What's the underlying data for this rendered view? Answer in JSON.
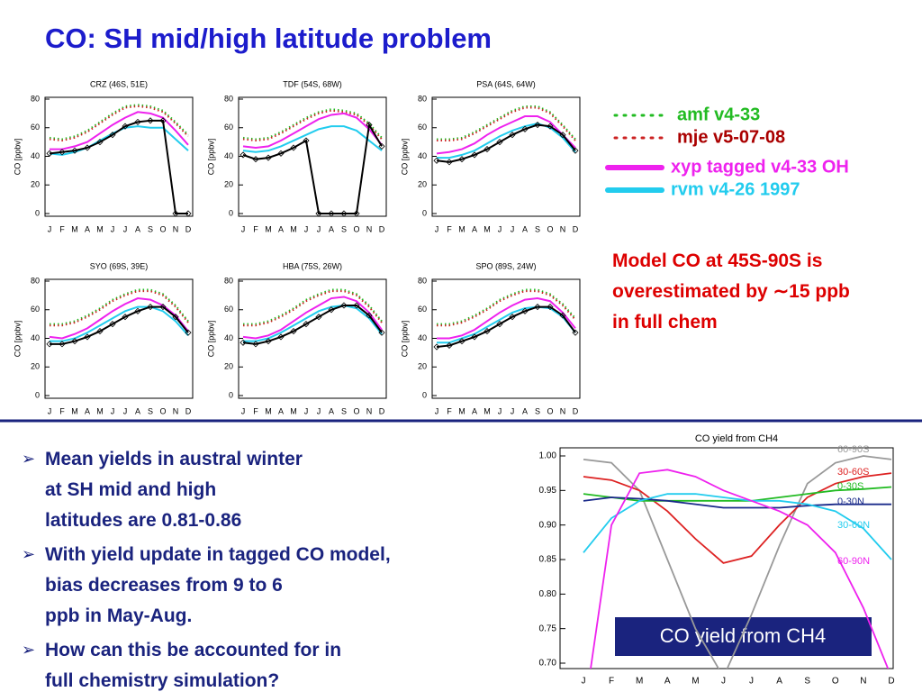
{
  "title": "CO: SH mid/high latitude problem",
  "legend": [
    {
      "name": "amf v4-33",
      "color": "#22bb22",
      "style": "dotted"
    },
    {
      "name": "mje v5-07-08",
      "color": "#cc2222",
      "style": "dotted"
    },
    {
      "name": "xyp tagged v4-33 OH",
      "color": "#ee22ee",
      "style": "solid"
    },
    {
      "name": "rvm v4-26 1997",
      "color": "#22ccee",
      "style": "solid"
    }
  ],
  "note": "Model CO at 45S-90S is overestimated by ∼15 ppb in full chem",
  "bullets": [
    "Mean yields in austral winter at SH mid and high latitudes are 0.81-0.86",
    "With yield update in tagged CO model, bias decreases from 9 to 6 ppb in May-Aug.",
    "How can this be accounted for in full chemistry simulation?"
  ],
  "caption": "CO yield from CH4",
  "chart_data": [
    {
      "type": "line",
      "title": "CRZ (46S, 51E)",
      "y_label": "CO [ppbv]",
      "categories": [
        "J",
        "F",
        "M",
        "A",
        "M",
        "J",
        "J",
        "A",
        "S",
        "O",
        "N",
        "D"
      ],
      "ylim": [
        0,
        80
      ],
      "yticks": [
        0,
        20,
        40,
        60,
        80
      ],
      "series": [
        {
          "values": [
            53,
            52,
            54,
            58,
            64,
            70,
            75,
            76,
            75,
            72,
            64,
            55
          ]
        },
        {
          "values": [
            52,
            51,
            53,
            57,
            63,
            69,
            74,
            75,
            74,
            71,
            63,
            54
          ]
        },
        {
          "values": [
            45,
            45,
            47,
            50,
            56,
            62,
            67,
            71,
            70,
            67,
            58,
            48
          ]
        },
        {
          "values": [
            42,
            41,
            43,
            46,
            51,
            56,
            60,
            61,
            60,
            60,
            52,
            44
          ]
        },
        {
          "color": "#000000",
          "values": [
            42,
            43,
            44,
            46,
            50,
            55,
            61,
            64,
            65,
            65,
            0,
            0
          ]
        }
      ]
    },
    {
      "type": "line",
      "title": "TDF (54S, 68W)",
      "y_label": "CO [ppbv]",
      "categories": [
        "J",
        "F",
        "M",
        "A",
        "M",
        "J",
        "J",
        "A",
        "S",
        "O",
        "N",
        "D"
      ],
      "ylim": [
        0,
        80
      ],
      "yticks": [
        0,
        20,
        40,
        60,
        80
      ],
      "series": [
        {
          "values": [
            53,
            52,
            53,
            57,
            62,
            67,
            71,
            73,
            72,
            70,
            63,
            53
          ]
        },
        {
          "values": [
            52,
            51,
            52,
            56,
            61,
            66,
            70,
            72,
            71,
            69,
            62,
            52
          ]
        },
        {
          "values": [
            47,
            46,
            47,
            51,
            56,
            61,
            66,
            69,
            70,
            67,
            59,
            48
          ]
        },
        {
          "values": [
            44,
            43,
            44,
            47,
            51,
            55,
            59,
            61,
            61,
            58,
            51,
            44
          ]
        },
        {
          "color": "#000000",
          "values": [
            41,
            38,
            39,
            42,
            46,
            51,
            0,
            0,
            0,
            0,
            62,
            47
          ]
        }
      ]
    },
    {
      "type": "line",
      "title": "PSA (64S, 64W)",
      "y_label": "CO [ppbv]",
      "categories": [
        "J",
        "F",
        "M",
        "A",
        "M",
        "J",
        "J",
        "A",
        "S",
        "O",
        "N",
        "D"
      ],
      "ylim": [
        0,
        80
      ],
      "yticks": [
        0,
        20,
        40,
        60,
        80
      ],
      "series": [
        {
          "values": [
            52,
            52,
            53,
            57,
            62,
            67,
            72,
            75,
            75,
            71,
            62,
            52
          ]
        },
        {
          "values": [
            51,
            51,
            52,
            56,
            61,
            66,
            71,
            74,
            74,
            70,
            61,
            51
          ]
        },
        {
          "values": [
            42,
            43,
            45,
            49,
            55,
            60,
            64,
            68,
            68,
            64,
            55,
            46
          ]
        },
        {
          "values": [
            39,
            39,
            41,
            44,
            49,
            54,
            58,
            61,
            63,
            60,
            53,
            43
          ]
        },
        {
          "color": "#000000",
          "values": [
            37,
            36,
            38,
            41,
            45,
            50,
            55,
            59,
            62,
            61,
            55,
            44
          ]
        }
      ]
    },
    {
      "type": "line",
      "title": "SYO (69S, 39E)",
      "y_label": "CO [ppbv]",
      "categories": [
        "J",
        "F",
        "M",
        "A",
        "M",
        "J",
        "J",
        "A",
        "S",
        "O",
        "N",
        "D"
      ],
      "ylim": [
        0,
        80
      ],
      "yticks": [
        0,
        20,
        40,
        60,
        80
      ],
      "series": [
        {
          "values": [
            50,
            50,
            52,
            56,
            61,
            67,
            71,
            74,
            74,
            71,
            63,
            52
          ]
        },
        {
          "values": [
            49,
            49,
            51,
            55,
            60,
            66,
            70,
            73,
            73,
            70,
            62,
            51
          ]
        },
        {
          "values": [
            41,
            40,
            43,
            47,
            53,
            59,
            64,
            68,
            67,
            63,
            56,
            45
          ]
        },
        {
          "values": [
            38,
            38,
            40,
            44,
            49,
            54,
            59,
            62,
            62,
            59,
            52,
            42
          ]
        },
        {
          "color": "#000000",
          "values": [
            36,
            36,
            38,
            41,
            45,
            50,
            55,
            59,
            62,
            62,
            55,
            44
          ]
        }
      ]
    },
    {
      "type": "line",
      "title": "HBA (75S, 26W)",
      "y_label": "CO [ppbv]",
      "categories": [
        "J",
        "F",
        "M",
        "A",
        "M",
        "J",
        "J",
        "A",
        "S",
        "O",
        "N",
        "D"
      ],
      "ylim": [
        0,
        80
      ],
      "yticks": [
        0,
        20,
        40,
        60,
        80
      ],
      "series": [
        {
          "values": [
            50,
            50,
            52,
            56,
            61,
            67,
            71,
            74,
            74,
            71,
            63,
            52
          ]
        },
        {
          "values": [
            49,
            49,
            51,
            55,
            60,
            66,
            70,
            73,
            73,
            70,
            62,
            51
          ]
        },
        {
          "values": [
            41,
            40,
            42,
            46,
            52,
            58,
            63,
            68,
            69,
            66,
            58,
            46
          ]
        },
        {
          "values": [
            38,
            38,
            40,
            44,
            49,
            54,
            59,
            62,
            63,
            61,
            54,
            43
          ]
        },
        {
          "color": "#000000",
          "values": [
            37,
            36,
            38,
            41,
            45,
            50,
            55,
            60,
            63,
            63,
            56,
            44
          ]
        }
      ]
    },
    {
      "type": "line",
      "title": "SPO (89S, 24W)",
      "y_label": "CO [ppbv]",
      "categories": [
        "J",
        "F",
        "M",
        "A",
        "M",
        "J",
        "J",
        "A",
        "S",
        "O",
        "N",
        "D"
      ],
      "ylim": [
        0,
        80
      ],
      "yticks": [
        0,
        20,
        40,
        60,
        80
      ],
      "series": [
        {
          "values": [
            50,
            50,
            52,
            56,
            61,
            67,
            71,
            74,
            74,
            71,
            64,
            54
          ]
        },
        {
          "values": [
            49,
            49,
            51,
            55,
            60,
            66,
            70,
            73,
            73,
            70,
            63,
            53
          ]
        },
        {
          "values": [
            40,
            40,
            42,
            46,
            52,
            58,
            63,
            67,
            68,
            66,
            58,
            47
          ]
        },
        {
          "values": [
            37,
            37,
            40,
            43,
            48,
            53,
            58,
            61,
            62,
            61,
            55,
            44
          ]
        },
        {
          "color": "#000000",
          "values": [
            34,
            35,
            38,
            41,
            45,
            50,
            55,
            59,
            62,
            62,
            56,
            44
          ]
        }
      ]
    },
    {
      "type": "line",
      "title": "CO yield from CH4",
      "categories": [
        "J",
        "F",
        "M",
        "A",
        "M",
        "J",
        "J",
        "A",
        "S",
        "O",
        "N",
        "D"
      ],
      "ylim": [
        0.7,
        1.0
      ],
      "yticks": [
        {
          "value": 0.7,
          "label": "0.70"
        },
        0.75,
        {
          "value": 0.8,
          "label": "0.80"
        },
        0.85,
        {
          "value": 0.9,
          "label": "0.90"
        },
        0.95,
        {
          "value": 1.0,
          "label": "1.00"
        }
      ],
      "series": [
        {
          "name": "60-90S",
          "color": "#999999",
          "values": [
            0.995,
            0.99,
            0.95,
            0.85,
            0.75,
            0.68,
            0.77,
            0.87,
            0.96,
            0.99,
            1.0,
            0.995
          ]
        },
        {
          "name": "30-60S",
          "color": "#dd2222",
          "values": [
            0.97,
            0.965,
            0.95,
            0.92,
            0.88,
            0.845,
            0.855,
            0.9,
            0.94,
            0.96,
            0.97,
            0.975
          ]
        },
        {
          "name": "0-30S",
          "color": "#22bb22",
          "values": [
            0.945,
            0.94,
            0.935,
            0.935,
            0.935,
            0.935,
            0.935,
            0.94,
            0.945,
            0.95,
            0.952,
            0.955
          ]
        },
        {
          "name": "0-30N",
          "color": "#1a2a8a",
          "values": [
            0.935,
            0.94,
            0.938,
            0.935,
            0.93,
            0.925,
            0.925,
            0.925,
            0.928,
            0.93,
            0.93,
            0.93
          ]
        },
        {
          "name": "30-60N",
          "color": "#22ccee",
          "values": [
            0.86,
            0.91,
            0.935,
            0.945,
            0.945,
            0.94,
            0.935,
            0.935,
            0.93,
            0.92,
            0.895,
            0.85
          ]
        },
        {
          "name": "60-90N",
          "color": "#ee22ee",
          "values": [
            0.62,
            0.9,
            0.975,
            0.98,
            0.97,
            0.95,
            0.935,
            0.92,
            0.9,
            0.86,
            0.78,
            0.68
          ]
        }
      ]
    }
  ]
}
